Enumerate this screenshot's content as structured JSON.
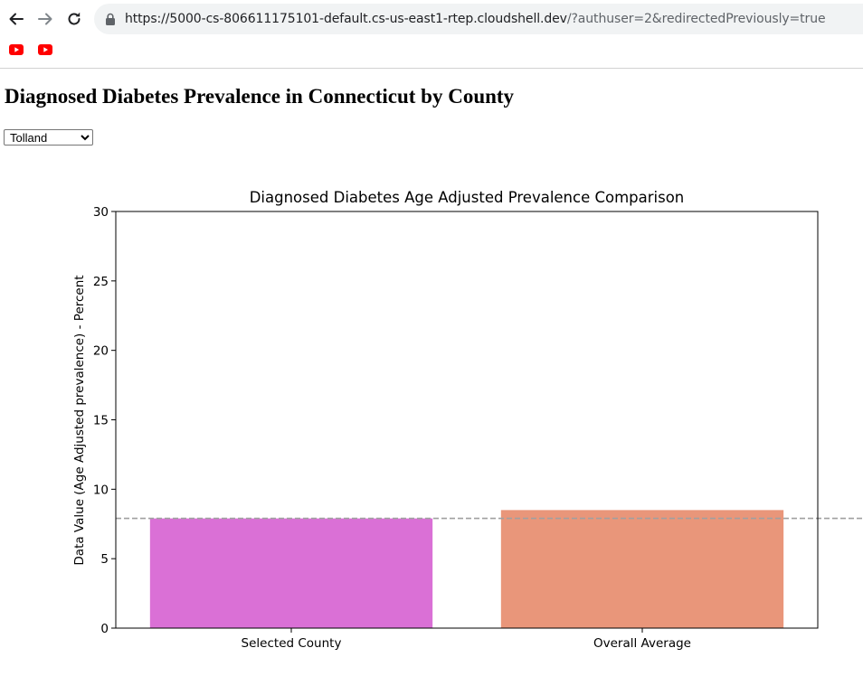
{
  "browser": {
    "url_host": "https://5000-cs-806611175101-default.cs-us-east1-rtep.cloudshell.dev",
    "url_rest": "/?authuser=2&redirectedPreviously=true",
    "bookmarks": [
      {
        "icon": "youtube-icon"
      },
      {
        "icon": "youtube-icon"
      }
    ]
  },
  "page": {
    "title": "Diagnosed Diabetes Prevalence in Connecticut by County",
    "county_select": {
      "selected": "Tolland",
      "options": [
        "Tolland"
      ]
    }
  },
  "colors": {
    "selected_bar": "#da70d6",
    "average_bar": "#e9967a",
    "reference_line": "#a0a0a0"
  },
  "chart_data": {
    "type": "bar",
    "title": "Diagnosed Diabetes Age Adjusted Prevalence Comparison",
    "xlabel": "",
    "ylabel": "Data Value (Age Adjusted prevalence) - Percent",
    "categories": [
      "Selected County",
      "Overall Average"
    ],
    "values": [
      7.9,
      8.5
    ],
    "ylim": [
      0,
      30
    ],
    "yticks": [
      0,
      5,
      10,
      15,
      20,
      25,
      30
    ],
    "reference_line": 7.9,
    "grid": false
  }
}
